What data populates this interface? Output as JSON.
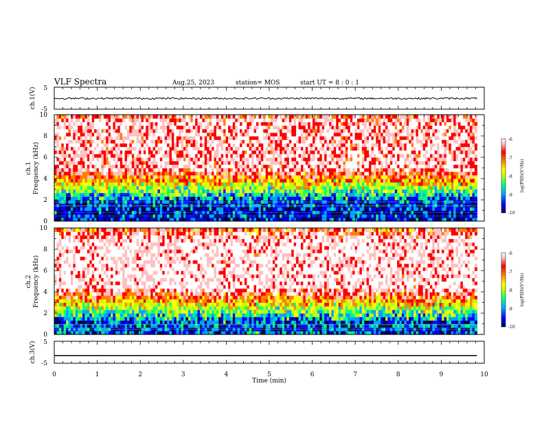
{
  "header": {
    "title": "VLF Spectra",
    "date": "Aug.25, 2023",
    "station": "station= MOS",
    "start": "start  UT  =   8 : 0  : 1"
  },
  "colors": {
    "spectrogram": [
      "#000060",
      "#0000ff",
      "#00a0ff",
      "#00ff80",
      "#c0ff00",
      "#ffff00",
      "#ff8000",
      "#ff0000",
      "#ffc0c0",
      "#ffffff"
    ]
  },
  "chart_data": [
    {
      "type": "line",
      "ylabel": "ch.1(V)",
      "ylim": [
        -5,
        5
      ],
      "yticks": [
        "5",
        "-5"
      ],
      "series": [
        {
          "values": [
            -0.1,
            0.2
          ]
        }
      ],
      "description_level": -0.1
    },
    {
      "type": "heatmap",
      "ylabel_top": "ch.1",
      "ylabel": "Frequency (kHz)",
      "ylim": [
        0,
        10
      ],
      "yticks": [
        "0",
        "2",
        "4",
        "6",
        "8",
        "10"
      ],
      "colorbar": {
        "label": "log(PSD)(V²/Hz)",
        "range": [
          -10,
          -6
        ],
        "ticks": [
          "-6",
          "-7",
          "-8",
          "-9",
          "-10"
        ]
      },
      "dominant_band_khz": [
        5,
        9.5
      ],
      "dominant_level": -6.5,
      "background_level": -9.5
    },
    {
      "type": "heatmap",
      "ylabel_top": "ch.2",
      "ylabel": "Frequency (kHz)",
      "ylim": [
        0,
        10
      ],
      "yticks": [
        "0",
        "2",
        "4",
        "6",
        "8",
        "10"
      ],
      "colorbar": {
        "label": "log(PSD)(V²/Hz)",
        "range": [
          -10,
          -6
        ],
        "ticks": [
          "-6",
          "-7",
          "-8",
          "-9",
          "-10"
        ]
      },
      "dominant_band_khz": [
        4.5,
        9
      ],
      "dominant_level": -6.3,
      "background_level": -9.3
    },
    {
      "type": "line",
      "ylabel": "ch.3(V)",
      "ylim": [
        -5,
        5
      ],
      "yticks": [
        "5",
        "-5"
      ],
      "series": [
        {
          "values": [
            -1.5,
            -1.5
          ]
        }
      ]
    }
  ],
  "xaxis": {
    "xlabel": "Time  (min)",
    "xlim": [
      0,
      10
    ],
    "ticks": [
      "0",
      "1",
      "2",
      "3",
      "4",
      "5",
      "6",
      "7",
      "8",
      "9",
      "10"
    ],
    "data_end_min": 9.83
  }
}
